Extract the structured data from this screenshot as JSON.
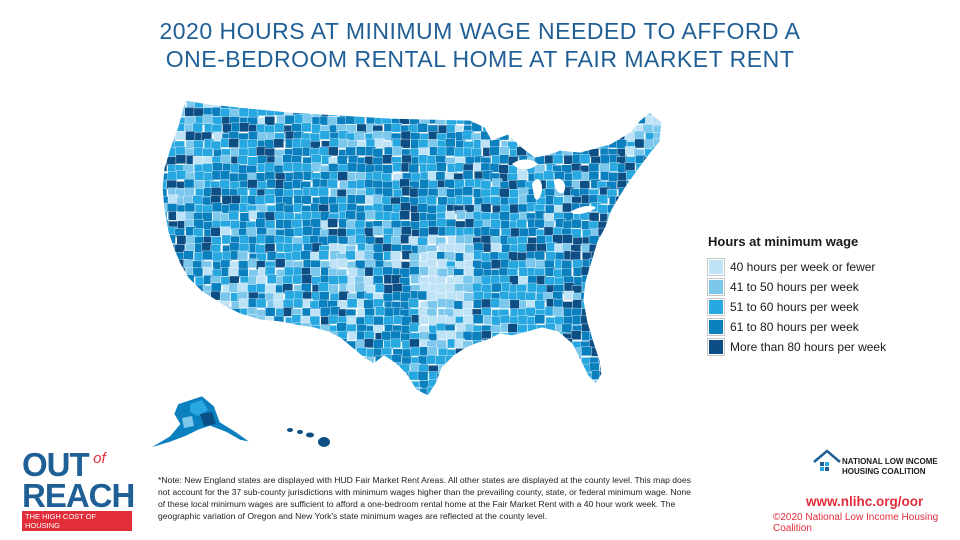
{
  "title": {
    "line1": "2020 HOURS AT MINIMUM WAGE NEEDED TO AFFORD A",
    "line2": "ONE-BEDROOM RENTAL HOME AT FAIR MARKET RENT"
  },
  "legend": {
    "title": "Hours at minimum wage",
    "items": [
      {
        "label": "40 hours per week or fewer",
        "color": "#bfe3f6"
      },
      {
        "label": "41 to 50 hours per week",
        "color": "#7cc7ec"
      },
      {
        "label": "51 to 60 hours per week",
        "color": "#28a8e0"
      },
      {
        "label": "61 to 80 hours per week",
        "color": "#0b80bf"
      },
      {
        "label": "More than 80 hours per week",
        "color": "#0d4f84"
      }
    ]
  },
  "note": "*Note: New England states are displayed with HUD Fair Market Rent Areas. All other states are displayed at the county level. This map does not account for the 37 sub-county jurisdictions with minimum wages higher than the prevailing county, state, or federal minimum wage. None of these local minimum wages are sufficient to afford a one-bedroom rental home at the Fair Market Rent with a 40 hour work week. The geographic variation of Oregon and New York's state minimum wages are reflected at the county level.",
  "logo": {
    "out": "OUT",
    "of": "of",
    "reach": "REACH",
    "tagline": "THE HIGH COST OF HOUSING"
  },
  "org": {
    "name_line1": "NATIONAL LOW INCOME",
    "name_line2": "HOUSING COALITION",
    "url": "www.nlihc.org/oor",
    "copyright": "©2020 National Low Income Housing Coalition"
  }
}
